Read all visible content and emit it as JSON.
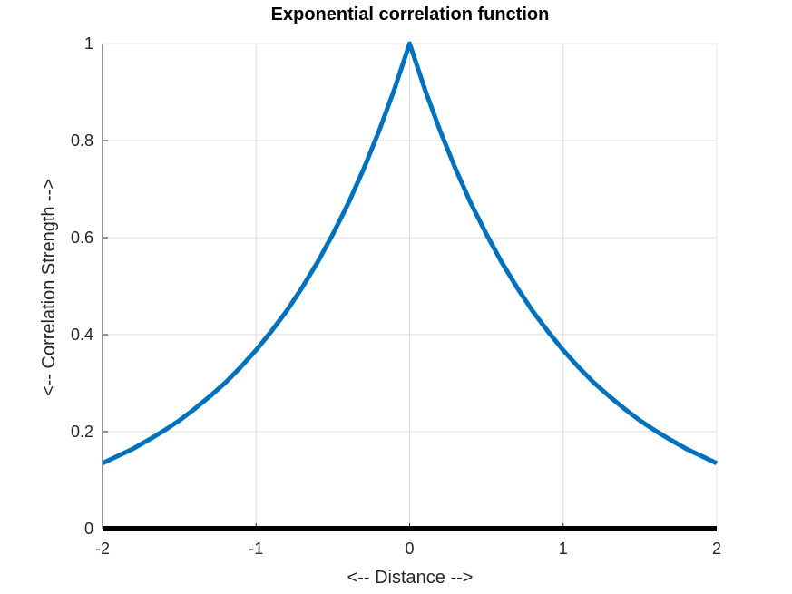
{
  "chart_data": {
    "type": "line",
    "title": "Exponential correlation function",
    "xlabel": "<-- Distance -->",
    "ylabel": "<-- Correlation Strength -->",
    "xlim": [
      -2,
      2
    ],
    "ylim": [
      0,
      1
    ],
    "x_ticks": [
      "-2",
      "-1",
      "0",
      "1",
      "2"
    ],
    "y_ticks": [
      "0",
      "0.2",
      "0.4",
      "0.6",
      "0.8",
      "1"
    ],
    "grid": true,
    "series": [
      {
        "color": "#0072bd",
        "x": [
          -2,
          -1.9,
          -1.8,
          -1.7,
          -1.6,
          -1.5,
          -1.4,
          -1.3,
          -1.2,
          -1.1,
          -1,
          -0.9,
          -0.8,
          -0.7,
          -0.6,
          -0.5,
          -0.4,
          -0.3,
          -0.2,
          -0.1,
          0,
          0.1,
          0.2,
          0.3,
          0.4,
          0.5,
          0.6,
          0.7,
          0.8,
          0.9,
          1,
          1.1,
          1.2,
          1.3,
          1.4,
          1.5,
          1.6,
          1.7,
          1.8,
          1.9,
          2
        ],
        "y": [
          0.135,
          0.15,
          0.165,
          0.183,
          0.202,
          0.223,
          0.247,
          0.273,
          0.301,
          0.333,
          0.368,
          0.407,
          0.449,
          0.497,
          0.549,
          0.607,
          0.67,
          0.741,
          0.819,
          0.905,
          1,
          0.905,
          0.819,
          0.741,
          0.67,
          0.607,
          0.549,
          0.497,
          0.449,
          0.407,
          0.368,
          0.333,
          0.301,
          0.273,
          0.247,
          0.223,
          0.202,
          0.183,
          0.165,
          0.15,
          0.135
        ]
      },
      {
        "color": "#000000",
        "x": [
          -2,
          2
        ],
        "y": [
          0,
          0
        ]
      }
    ]
  }
}
